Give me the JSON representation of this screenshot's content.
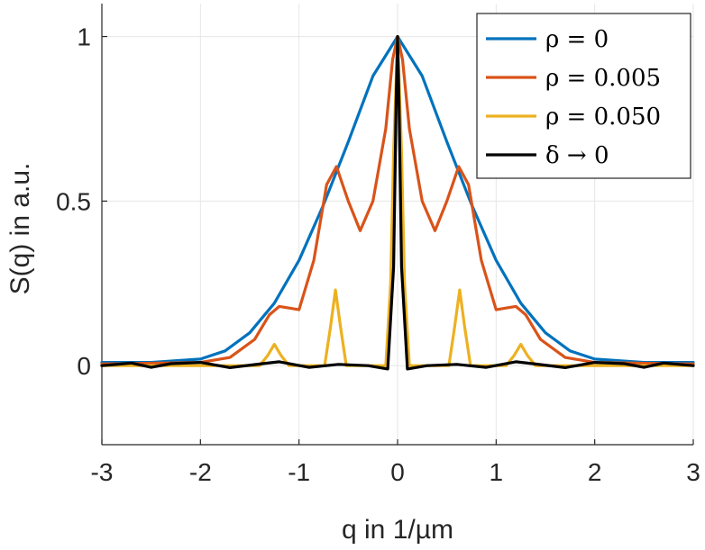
{
  "chart_data": {
    "type": "line",
    "title": "",
    "xlabel": "q in 1/µm",
    "ylabel": "S(q) in a.u.",
    "xlim": [
      -3,
      3
    ],
    "ylim": [
      -0.24,
      1.1
    ],
    "xticks": [
      -3,
      -2,
      -1,
      0,
      1,
      2,
      3
    ],
    "xtick_labels": [
      "-3",
      "-2",
      "-1",
      "0",
      "1",
      "2",
      "3"
    ],
    "yticks": [
      0,
      0.5,
      1
    ],
    "ytick_labels": [
      "0",
      "0.5",
      "1"
    ],
    "grid": true,
    "legend_position": "top-right",
    "series": [
      {
        "name": "ρ = 0",
        "color": "#0072BD",
        "x": [
          -3,
          -2.5,
          -2,
          -1.75,
          -1.5,
          -1.25,
          -1.0,
          -0.75,
          -0.5,
          -0.25,
          0,
          0.25,
          0.5,
          0.75,
          1.0,
          1.25,
          1.5,
          1.75,
          2,
          2.5,
          3
        ],
        "y": [
          0.01,
          0.01,
          0.02,
          0.045,
          0.1,
          0.19,
          0.32,
          0.49,
          0.68,
          0.88,
          1.0,
          0.88,
          0.68,
          0.49,
          0.32,
          0.19,
          0.1,
          0.045,
          0.02,
          0.01,
          0.01
        ]
      },
      {
        "name": "ρ = 0.005",
        "color": "#D95319",
        "x": [
          -3,
          -2.0,
          -1.7,
          -1.45,
          -1.3,
          -1.2,
          -1.1,
          -1.0,
          -0.85,
          -0.72,
          -0.62,
          -0.5,
          -0.38,
          -0.25,
          -0.12,
          -0.05,
          0,
          0.05,
          0.12,
          0.25,
          0.38,
          0.5,
          0.62,
          0.72,
          0.85,
          1.0,
          1.1,
          1.2,
          1.3,
          1.45,
          1.7,
          2.0,
          3
        ],
        "y": [
          0.005,
          0.01,
          0.025,
          0.08,
          0.155,
          0.18,
          0.175,
          0.17,
          0.32,
          0.55,
          0.605,
          0.5,
          0.41,
          0.5,
          0.72,
          0.93,
          1.0,
          0.93,
          0.72,
          0.5,
          0.41,
          0.5,
          0.605,
          0.55,
          0.32,
          0.17,
          0.175,
          0.18,
          0.155,
          0.08,
          0.025,
          0.01,
          0.005
        ]
      },
      {
        "name": "ρ = 0.050",
        "color": "#EDB120",
        "x": [
          -3,
          -1.4,
          -1.32,
          -1.25,
          -1.18,
          -1.1,
          -0.74,
          -0.68,
          -0.63,
          -0.58,
          -0.52,
          -0.12,
          -0.07,
          -0.04,
          0,
          0.04,
          0.07,
          0.12,
          0.52,
          0.58,
          0.63,
          0.68,
          0.74,
          1.1,
          1.18,
          1.25,
          1.32,
          1.4,
          3
        ],
        "y": [
          0.0,
          0.0,
          0.03,
          0.065,
          0.03,
          0.0,
          0.0,
          0.12,
          0.23,
          0.12,
          0.0,
          0.0,
          0.25,
          0.65,
          1.0,
          0.65,
          0.25,
          0.0,
          0.0,
          0.12,
          0.23,
          0.12,
          0.0,
          0.0,
          0.03,
          0.065,
          0.03,
          0.0,
          0.0
        ]
      },
      {
        "name": "δ → 0",
        "color": "#000000",
        "x": [
          -3,
          -2.7,
          -2.5,
          -2.3,
          -2.0,
          -1.7,
          -1.4,
          -1.2,
          -0.9,
          -0.6,
          -0.3,
          -0.1,
          -0.04,
          -0.015,
          0,
          0.015,
          0.04,
          0.1,
          0.3,
          0.6,
          0.9,
          1.2,
          1.4,
          1.7,
          2.0,
          2.3,
          2.5,
          2.7,
          3
        ],
        "y": [
          0.0,
          0.008,
          -0.005,
          0.006,
          0.01,
          -0.006,
          0.005,
          0.012,
          -0.005,
          0.004,
          0.0,
          -0.01,
          0.3,
          0.8,
          1.0,
          0.8,
          0.3,
          -0.01,
          0.0,
          0.004,
          -0.005,
          0.012,
          0.005,
          -0.006,
          0.01,
          0.006,
          -0.005,
          0.008,
          0.0
        ]
      }
    ]
  }
}
